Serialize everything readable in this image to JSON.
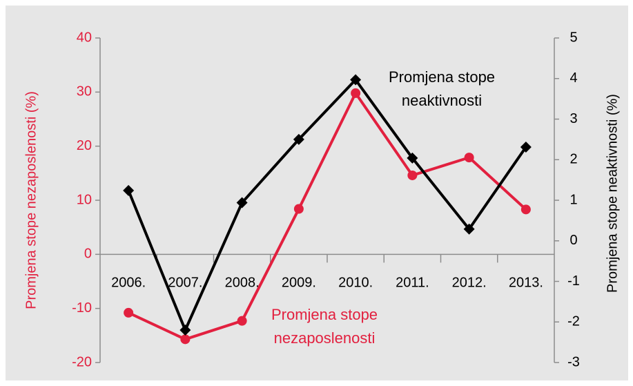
{
  "chart_data": {
    "type": "line",
    "categories": [
      "2006.",
      "2007.",
      "2008.",
      "2009.",
      "2010.",
      "2011.",
      "2012.",
      "2013."
    ],
    "series": [
      {
        "color": "#e2203f",
        "marker": "circle",
        "axis": "y",
        "values": [
          -10.8,
          -15.7,
          -12.3,
          8.4,
          29.8,
          14.6,
          17.9,
          8.3
        ]
      },
      {
        "color": "#000000",
        "marker": "diamond",
        "axis": "y2",
        "values": [
          1.24,
          -2.2,
          0.94,
          2.5,
          3.97,
          2.04,
          0.29,
          2.31
        ]
      }
    ],
    "ylabel": "Promjena stope nezaposlenosti (%)",
    "y2label": "Promjena stope neaktivnosti (%)",
    "ylim": [
      -20,
      40
    ],
    "yticks": [
      -20,
      -10,
      0,
      10,
      20,
      30,
      40
    ],
    "y2lim": [
      -3,
      5
    ],
    "y2ticks": [
      -3,
      -2,
      -1,
      0,
      1,
      2,
      3,
      4,
      5
    ],
    "annotations": [
      {
        "lines": [
          "Promjena stope",
          "neaktivnosti"
        ],
        "color": "#000000"
      },
      {
        "lines": [
          "Promjena stope",
          "nezaposlenosti"
        ],
        "color": "#e2203f"
      }
    ],
    "grid": false
  }
}
